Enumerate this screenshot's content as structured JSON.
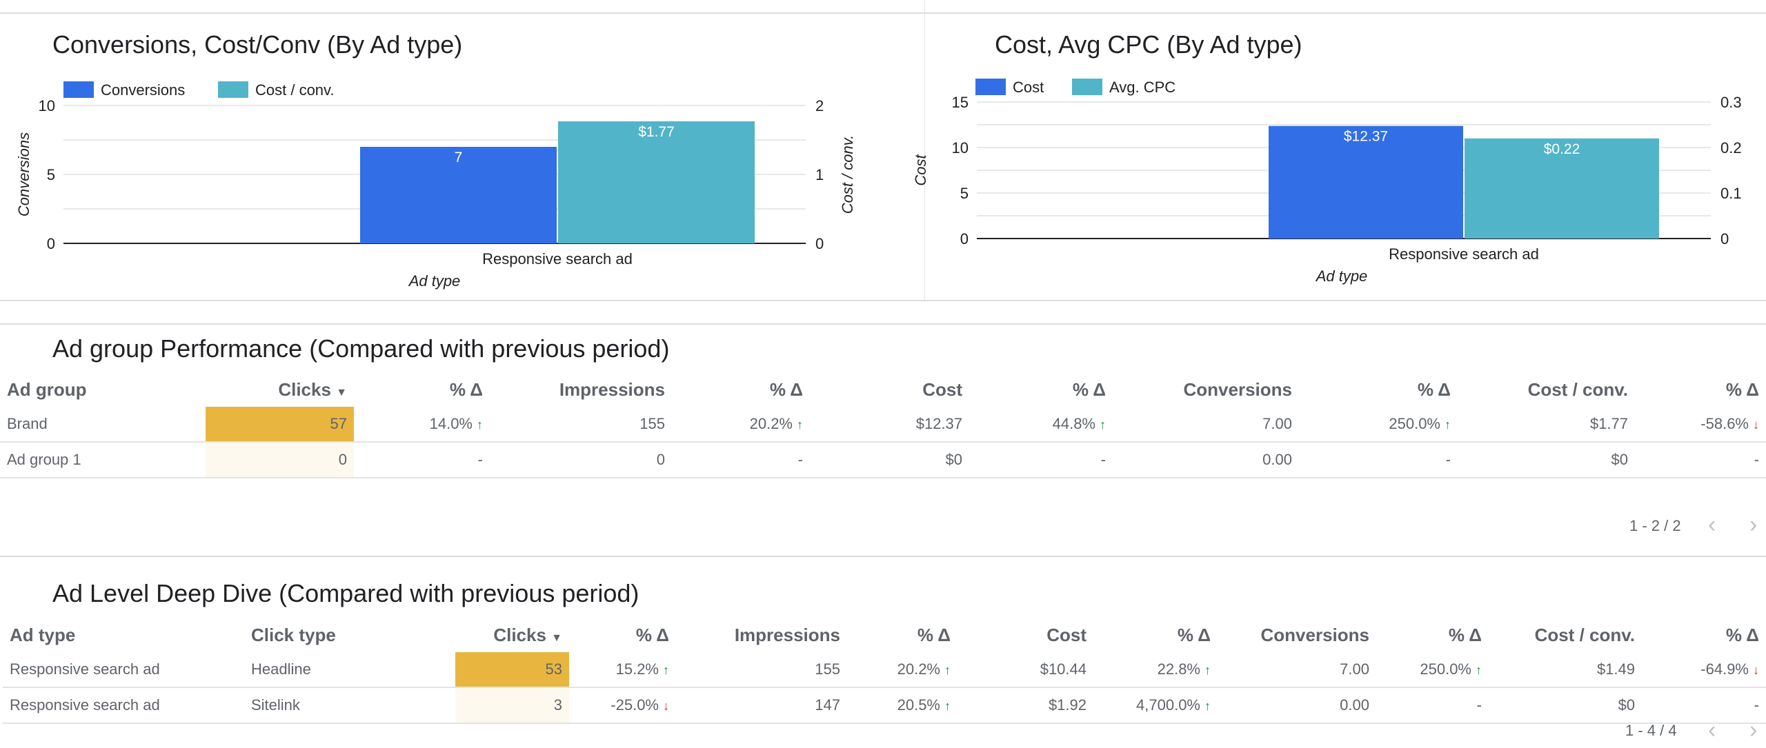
{
  "chart_data": [
    {
      "type": "bar",
      "title": "Conversions, Cost/Conv (By Ad type)",
      "categories": [
        "Responsive search ad"
      ],
      "series": [
        {
          "name": "Conversions",
          "values": [
            7
          ],
          "axis": "left",
          "color": "#326fe6",
          "labels": [
            "7"
          ]
        },
        {
          "name": "Cost / conv.",
          "values": [
            1.77
          ],
          "axis": "right",
          "color": "#52b4c8",
          "labels": [
            "$1.77"
          ]
        }
      ],
      "xlabel": "Ad type",
      "ylabel": "Conversions",
      "y2label": "Cost / conv.",
      "ylim": [
        0,
        10
      ],
      "y2lim": [
        0,
        2
      ],
      "yticks": [
        "10",
        "5",
        "0"
      ],
      "y2ticks": [
        "2",
        "1",
        "0"
      ],
      "legend": "top-left",
      "grid": true
    },
    {
      "type": "bar",
      "title": "Cost, Avg CPC (By Ad type)",
      "categories": [
        "Responsive search ad"
      ],
      "series": [
        {
          "name": "Cost",
          "values": [
            12.37
          ],
          "axis": "left",
          "color": "#326fe6",
          "labels": [
            "$12.37"
          ]
        },
        {
          "name": "Avg. CPC",
          "values": [
            0.22
          ],
          "axis": "right",
          "color": "#52b4c8",
          "labels": [
            "$0.22"
          ]
        }
      ],
      "xlabel": "Ad type",
      "ylabel": "Cost",
      "ylim": [
        0,
        15
      ],
      "y2lim": [
        0,
        0.3
      ],
      "yticks": [
        "15",
        "10",
        "5",
        "0"
      ],
      "y2ticks": [
        "0.3",
        "0.2",
        "0.1",
        "0"
      ],
      "legend": "top-left",
      "grid": true
    }
  ],
  "adgroup": {
    "title": "Ad group Performance (Compared with previous period)",
    "headers": {
      "ad_group": "Ad group",
      "clicks": "Clicks",
      "clicks_d": "% Δ",
      "impressions": "Impressions",
      "impr_d": "% Δ",
      "cost": "Cost",
      "cost_d": "% Δ",
      "conversions": "Conversions",
      "conv_d": "% Δ",
      "cpc": "Cost / conv.",
      "cpc_d": "% Δ"
    },
    "sort_icon": "sort-down-icon",
    "rows": [
      {
        "ad_group": "Brand",
        "clicks": "57",
        "clicks_d": "14.0%",
        "impressions": "155",
        "impr_d": "20.2%",
        "cost": "$12.37",
        "cost_d": "44.8%",
        "conversions": "7.00",
        "conv_d": "250.0%",
        "cpc": "$1.77",
        "cpc_d": "-58.6%"
      },
      {
        "ad_group": "Ad group 1",
        "clicks": "0",
        "clicks_d": "-",
        "impressions": "0",
        "impr_d": "-",
        "cost": "$0",
        "cost_d": "-",
        "conversions": "0.00",
        "conv_d": "-",
        "cpc": "$0",
        "cpc_d": "-"
      }
    ],
    "pager": "1 - 2 / 2"
  },
  "adlevel": {
    "title": "Ad Level Deep Dive (Compared with previous period)",
    "headers": {
      "ad_type": "Ad type",
      "click_type": "Click type",
      "clicks": "Clicks",
      "clicks_d": "% Δ",
      "impressions": "Impressions",
      "impr_d": "% Δ",
      "cost": "Cost",
      "cost_d": "% Δ",
      "conversions": "Conversions",
      "conv_d": "% Δ",
      "cpc": "Cost / conv.",
      "cpc_d": "% Δ"
    },
    "rows": [
      {
        "ad_type": "Responsive search ad",
        "click_type": "Headline",
        "clicks": "53",
        "clicks_d": "15.2%",
        "impressions": "155",
        "impr_d": "20.2%",
        "cost": "$10.44",
        "cost_d": "22.8%",
        "conversions": "7.00",
        "conv_d": "250.0%",
        "cpc": "$1.49",
        "cpc_d": "-64.9%"
      },
      {
        "ad_type": "Responsive search ad",
        "click_type": "Sitelink",
        "clicks": "3",
        "clicks_d": "-25.0%",
        "impressions": "147",
        "impr_d": "20.5%",
        "cost": "$1.92",
        "cost_d": "4,700.0%",
        "conversions": "0.00",
        "conv_d": "-",
        "cpc": "$0",
        "cpc_d": "-"
      }
    ],
    "pager": "1 - 4 / 4"
  },
  "glyphs": {
    "up": "↑",
    "down": "↓",
    "prev": "‹",
    "next": "›",
    "sort": "▼"
  }
}
